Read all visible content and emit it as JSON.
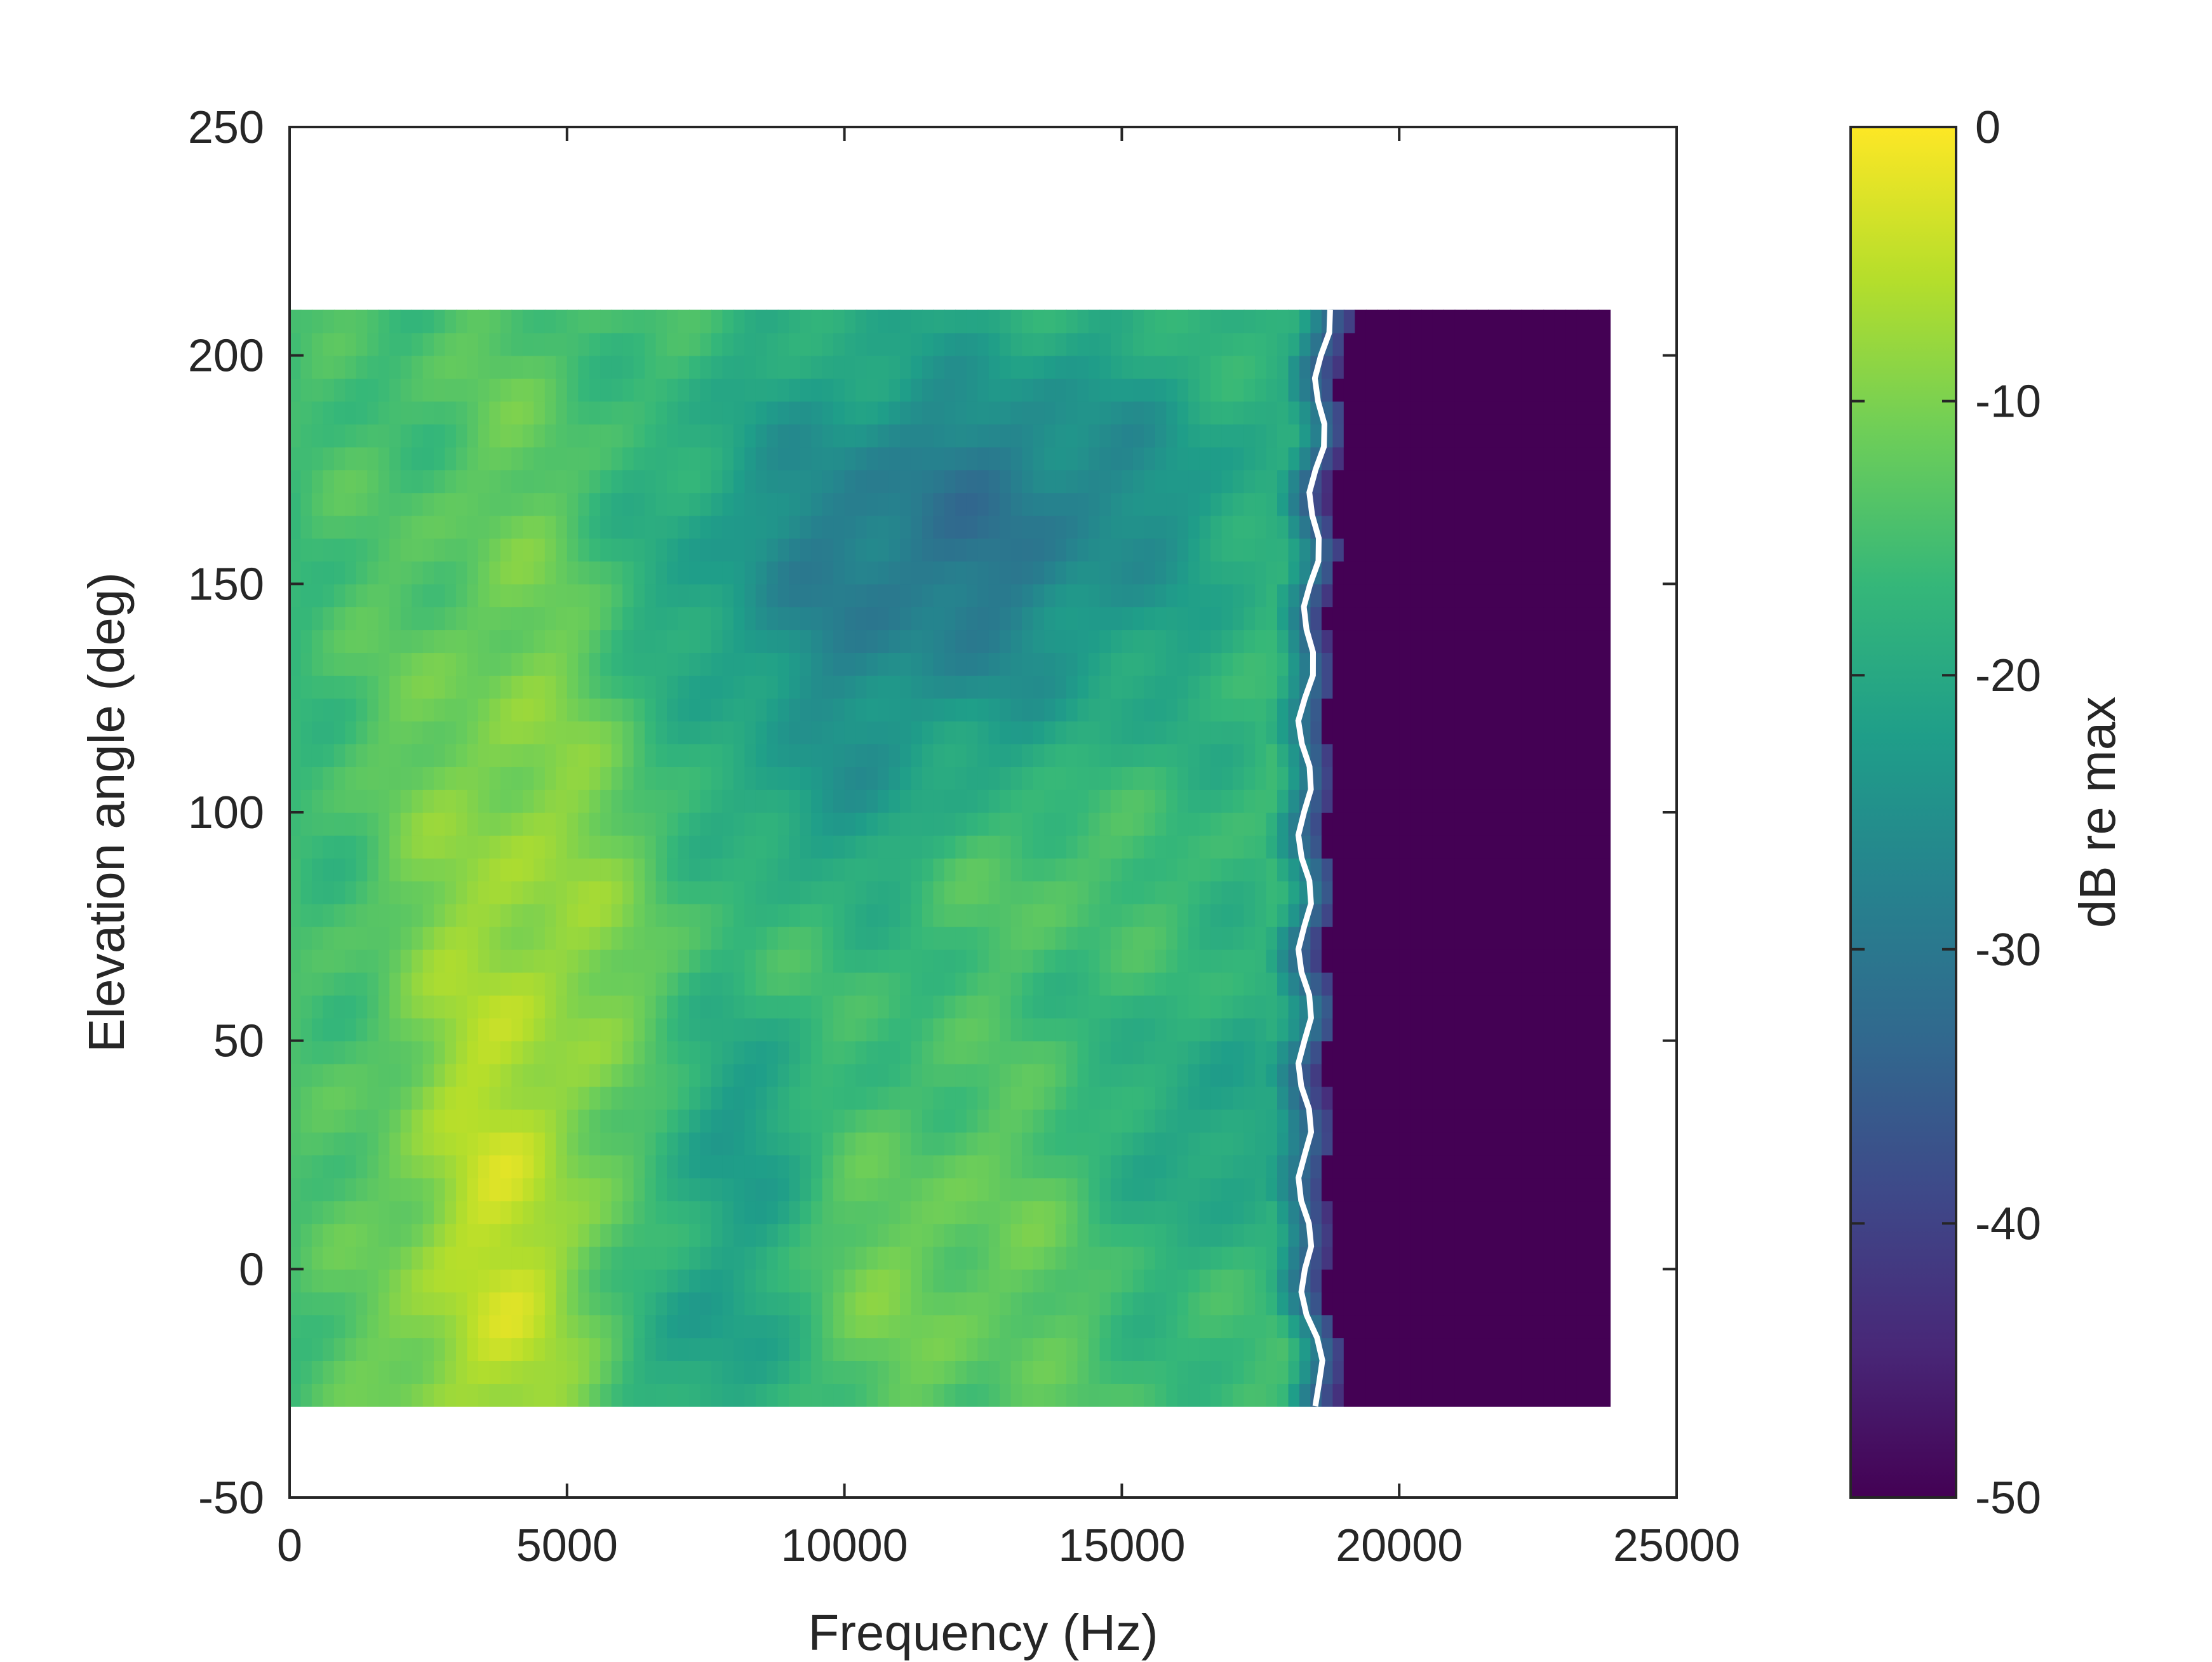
{
  "chart_data": {
    "type": "heatmap",
    "title": "",
    "xlabel": "Frequency (Hz)",
    "ylabel": "Elevation angle (deg)",
    "xlim": [
      0,
      25000
    ],
    "ylim": [
      -50,
      250
    ],
    "xticks": [
      0,
      5000,
      10000,
      15000,
      20000,
      25000
    ],
    "yticks": [
      -50,
      0,
      50,
      100,
      150,
      200,
      250
    ],
    "xtick_labels": [
      "0",
      "5000",
      "10000",
      "15000",
      "20000",
      "25000"
    ],
    "ytick_labels": [
      "-50",
      "0",
      "50",
      "100",
      "150",
      "200",
      "250"
    ],
    "data_extent": {
      "frequency_hz": [
        0,
        23800
      ],
      "elevation_deg": [
        -30,
        210
      ]
    },
    "cutoff_frequency_hz_approx": 18500,
    "grid": false,
    "colormap": "viridis",
    "colorbar": {
      "label": "dB re max",
      "range": [
        -50,
        0
      ],
      "ticks": [
        0,
        -10,
        -20,
        -30,
        -40,
        -50
      ],
      "tick_labels": [
        "0",
        "-10",
        "-20",
        "-30",
        "-40",
        "-50"
      ]
    },
    "colors": {
      "viridis": [
        "#440154",
        "#482878",
        "#3e4989",
        "#31688e",
        "#26828e",
        "#1f9e89",
        "#35b779",
        "#6ece58",
        "#b5de2b",
        "#fde725"
      ]
    }
  }
}
